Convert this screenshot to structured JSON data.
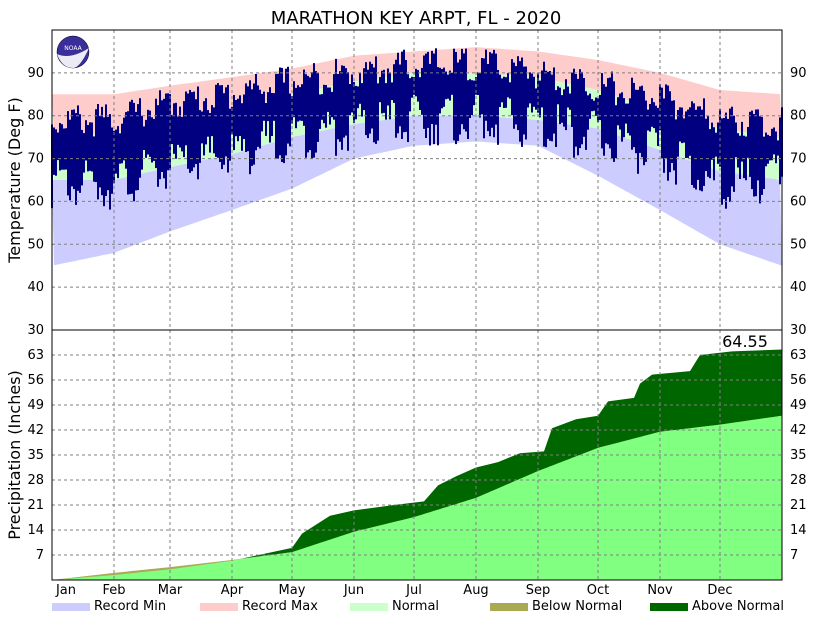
{
  "chart_data": {
    "title": "MARATHON KEY ARPT, FL - 2020",
    "months": [
      "Jan",
      "Feb",
      "Mar",
      "Apr",
      "May",
      "Jun",
      "Jul",
      "Aug",
      "Sep",
      "Oct",
      "Nov",
      "Dec"
    ],
    "colors": {
      "record_min": "#ccccff",
      "record_max": "#ffcccc",
      "normal": "#ccffcc",
      "observed": "#000080",
      "below_normal": "#aaaa55",
      "above_normal": "#006600",
      "normal_precip": "#80ff80"
    },
    "logo": {
      "text": "NOAA",
      "icon": "noaa-logo-icon",
      "colors": [
        "#3a2e9a",
        "#ffffff"
      ]
    },
    "temperature": {
      "type": "area",
      "ylabel": "Temperature (Deg F)",
      "ylim": [
        30,
        100
      ],
      "yticks": [
        30,
        40,
        50,
        60,
        70,
        80,
        90
      ],
      "record_min_mean": [
        [
          1,
          45
        ],
        [
          32,
          48
        ],
        [
          60,
          53
        ],
        [
          91,
          58
        ],
        [
          121,
          63
        ],
        [
          152,
          70
        ],
        [
          182,
          73
        ],
        [
          213,
          74
        ],
        [
          244,
          73
        ],
        [
          274,
          66
        ],
        [
          305,
          58
        ],
        [
          335,
          50
        ],
        [
          366,
          45
        ]
      ],
      "record_max_mean": [
        [
          1,
          85
        ],
        [
          32,
          85
        ],
        [
          60,
          87
        ],
        [
          91,
          89
        ],
        [
          121,
          91
        ],
        [
          152,
          94
        ],
        [
          182,
          95
        ],
        [
          213,
          96
        ],
        [
          244,
          95
        ],
        [
          274,
          93
        ],
        [
          305,
          90
        ],
        [
          335,
          86
        ],
        [
          366,
          85
        ]
      ],
      "normal_high": [
        [
          1,
          75
        ],
        [
          32,
          76
        ],
        [
          60,
          78
        ],
        [
          91,
          81
        ],
        [
          121,
          85
        ],
        [
          152,
          88
        ],
        [
          182,
          90
        ],
        [
          213,
          90
        ],
        [
          244,
          89
        ],
        [
          274,
          86
        ],
        [
          305,
          81
        ],
        [
          335,
          77
        ],
        [
          366,
          75
        ]
      ],
      "normal_low": [
        [
          1,
          65
        ],
        [
          32,
          65
        ],
        [
          60,
          68
        ],
        [
          91,
          71
        ],
        [
          121,
          75
        ],
        [
          152,
          78
        ],
        [
          182,
          80
        ],
        [
          213,
          80
        ],
        [
          244,
          79
        ],
        [
          274,
          77
        ],
        [
          305,
          72
        ],
        [
          335,
          67
        ],
        [
          366,
          65
        ]
      ],
      "observed_high_mean": [
        [
          1,
          79
        ],
        [
          32,
          79
        ],
        [
          60,
          83
        ],
        [
          91,
          85
        ],
        [
          121,
          88
        ],
        [
          152,
          90
        ],
        [
          182,
          92
        ],
        [
          213,
          92
        ],
        [
          244,
          90
        ],
        [
          274,
          87
        ],
        [
          305,
          84
        ],
        [
          335,
          79
        ],
        [
          366,
          78
        ]
      ],
      "observed_low_mean": [
        [
          1,
          66
        ],
        [
          32,
          66
        ],
        [
          60,
          70
        ],
        [
          91,
          73
        ],
        [
          121,
          77
        ],
        [
          152,
          79
        ],
        [
          182,
          81
        ],
        [
          213,
          81
        ],
        [
          244,
          80
        ],
        [
          274,
          77
        ],
        [
          305,
          73
        ],
        [
          335,
          66
        ],
        [
          366,
          68
        ]
      ]
    },
    "precipitation": {
      "type": "area",
      "ylabel": "Precipitation (Inches)",
      "ylim": [
        0,
        70
      ],
      "yticks": [
        7,
        14,
        21,
        28,
        35,
        42,
        49,
        56,
        63
      ],
      "total_label": "64.55",
      "total": 64.55,
      "normal_cumulative": [
        [
          1,
          0
        ],
        [
          32,
          2.0
        ],
        [
          60,
          3.6
        ],
        [
          91,
          5.6
        ],
        [
          121,
          7.8
        ],
        [
          152,
          13.5
        ],
        [
          182,
          17.6
        ],
        [
          213,
          23
        ],
        [
          244,
          30.5
        ],
        [
          274,
          37
        ],
        [
          305,
          41.5
        ],
        [
          335,
          43.5
        ],
        [
          366,
          46
        ]
      ],
      "observed_cumulative": [
        [
          1,
          0
        ],
        [
          32,
          1.4
        ],
        [
          60,
          3.0
        ],
        [
          91,
          5.4
        ],
        [
          121,
          9
        ],
        [
          126,
          13.0
        ],
        [
          140,
          18.0
        ],
        [
          152,
          19.5
        ],
        [
          172,
          21.0
        ],
        [
          187,
          22.0
        ],
        [
          194,
          26.5
        ],
        [
          203,
          29.0
        ],
        [
          213,
          31.5
        ],
        [
          224,
          33.0
        ],
        [
          235,
          35.5
        ],
        [
          247,
          36.0
        ],
        [
          251,
          42.5
        ],
        [
          263,
          45.0
        ],
        [
          274,
          46.0
        ],
        [
          279,
          50.0
        ],
        [
          292,
          51.0
        ],
        [
          295,
          55.0
        ],
        [
          301,
          57.5
        ],
        [
          320,
          58.5
        ],
        [
          325,
          63.0
        ],
        [
          341,
          64.0
        ],
        [
          366,
          64.55
        ]
      ]
    },
    "legend": [
      {
        "label": "Record Min",
        "key": "record_min"
      },
      {
        "label": "Record Max",
        "key": "record_max"
      },
      {
        "label": "Normal",
        "key": "normal"
      },
      {
        "label": "Below Normal",
        "key": "below_normal"
      },
      {
        "label": "Above Normal",
        "key": "above_normal"
      }
    ]
  }
}
